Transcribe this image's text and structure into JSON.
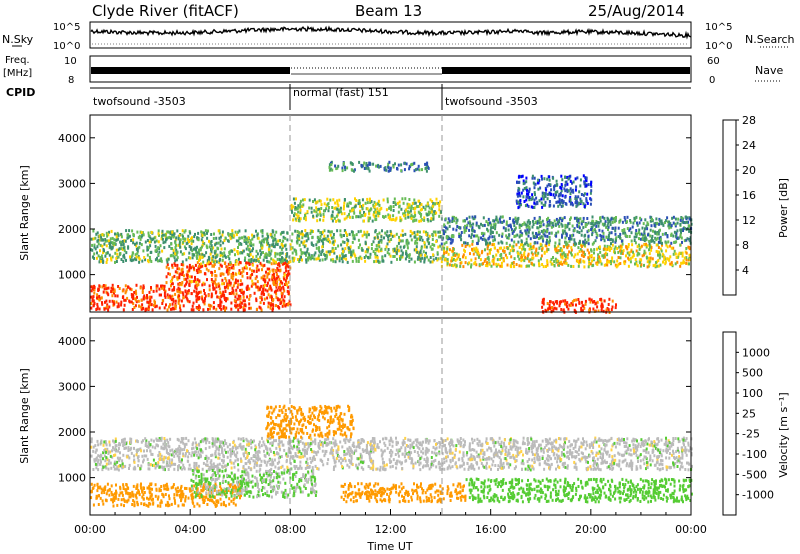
{
  "header": {
    "station": "Clyde River (fitACF)",
    "beam": "Beam 13",
    "date": "25/Aug/2014"
  },
  "strip": {
    "nsky_label": "N.Sky",
    "nsky_ticks": [
      "10^5",
      "10^0"
    ],
    "nsearch_label": "N.Search",
    "nsearch_ticks": [
      "10^5",
      "10^0"
    ],
    "freq_label_1": "Freq.",
    "freq_label_2": "[MHz]",
    "freq_ticks": [
      "10",
      "8"
    ],
    "nave_label": "Nave",
    "nave_ticks": [
      "60",
      "0"
    ],
    "cpid_label": "CPID",
    "cpid_segments": [
      {
        "text": "twofsound -3503",
        "from_hour": 0,
        "to_hour": 8
      },
      {
        "text": "normal (fast) 151",
        "from_hour": 8,
        "to_hour": 14
      },
      {
        "text": "twofsound -3503",
        "from_hour": 14,
        "to_hour": 24
      }
    ]
  },
  "axes": {
    "xlabel": "Time UT",
    "x_ticks": [
      "00:00",
      "04:00",
      "08:00",
      "12:00",
      "16:00",
      "20:00",
      "00:00"
    ],
    "ylabel": "Slant Range [km]",
    "y_ticks": [
      "1000",
      "2000",
      "3000",
      "4000"
    ]
  },
  "power_scale": {
    "label": "Power [dB]",
    "ticks": [
      "4",
      "8",
      "12",
      "16",
      "20",
      "24",
      "28"
    ],
    "colors": [
      "#0000ff",
      "#2a4fb5",
      "#3d8f6e",
      "#66bb55",
      "#ffd200",
      "#ff8c00",
      "#ff2000"
    ]
  },
  "velocity_scale": {
    "label": "Velocity [m s⁻¹]",
    "ticks": [
      "1000",
      "500",
      "100",
      "25",
      "-25",
      "-100",
      "-500",
      "-1000"
    ],
    "colors": [
      "#1f3cb4",
      "#2f6fb0",
      "#2e8b57",
      "#55cc33",
      "#bbbbbb",
      "#ffd24a",
      "#ff9a00",
      "#ff6a00",
      "#ff1a00"
    ]
  },
  "chart_data": [
    {
      "type": "line",
      "name": "N.Sky / N.Search",
      "x_range": [
        0,
        24
      ],
      "scale": "log",
      "ylim": [
        "10^0",
        "10^5"
      ]
    },
    {
      "type": "line",
      "name": "Freq. / Nave",
      "x_range": [
        0,
        24
      ],
      "ylim_freq_mhz": [
        8,
        10
      ],
      "ylim_nave": [
        0,
        60
      ]
    },
    {
      "type": "heatmap",
      "quantity": "Power [dB]",
      "xlabel": "Time UT",
      "ylabel": "Slant Range [km]",
      "xlim_hours": [
        0,
        24
      ],
      "ylim_km": [
        180,
        4500
      ],
      "colorbar_range_db": [
        0,
        30
      ],
      "scatter_regions": [
        {
          "t0": 0.0,
          "t1": 8.0,
          "r0": 250,
          "r1": 800,
          "level": 26
        },
        {
          "t0": 3.0,
          "t1": 8.0,
          "r0": 800,
          "r1": 1300,
          "level": 24
        },
        {
          "t0": 0.0,
          "t1": 14.0,
          "r0": 1300,
          "r1": 2000,
          "level": 13
        },
        {
          "t0": 8.0,
          "t1": 14.0,
          "r0": 2200,
          "r1": 2700,
          "level": 15
        },
        {
          "t0": 9.5,
          "t1": 13.5,
          "r0": 3300,
          "r1": 3500,
          "level": 9
        },
        {
          "t0": 14.0,
          "t1": 24.0,
          "r0": 1200,
          "r1": 1700,
          "level": 18
        },
        {
          "t0": 14.0,
          "t1": 24.0,
          "r0": 1700,
          "r1": 2300,
          "level": 10
        },
        {
          "t0": 17.0,
          "t1": 20.0,
          "r0": 2500,
          "r1": 3200,
          "level": 6
        },
        {
          "t0": 18.0,
          "t1": 21.0,
          "r0": 200,
          "r1": 500,
          "level": 27
        }
      ]
    },
    {
      "type": "heatmap",
      "quantity": "Velocity [m s⁻¹]",
      "xlabel": "Time UT",
      "ylabel": "Slant Range [km]",
      "xlim_hours": [
        0,
        24
      ],
      "ylim_km": [
        180,
        4500
      ],
      "colorbar_range_ms": [
        -1000,
        1000
      ],
      "scatter_regions": [
        {
          "t0": 0.0,
          "t1": 24.0,
          "r0": 1200,
          "r1": 1900,
          "level": 0
        },
        {
          "t0": 0.0,
          "t1": 6.0,
          "r0": 400,
          "r1": 900,
          "level": -150
        },
        {
          "t0": 7.0,
          "t1": 10.5,
          "r0": 1900,
          "r1": 2600,
          "level": -200
        },
        {
          "t0": 10.0,
          "t1": 15.0,
          "r0": 500,
          "r1": 900,
          "level": -150
        },
        {
          "t0": 15.0,
          "t1": 24.0,
          "r0": 500,
          "r1": 1000,
          "level": 60
        },
        {
          "t0": 4.0,
          "t1": 9.0,
          "r0": 600,
          "r1": 1200,
          "level": 30
        }
      ]
    }
  ]
}
